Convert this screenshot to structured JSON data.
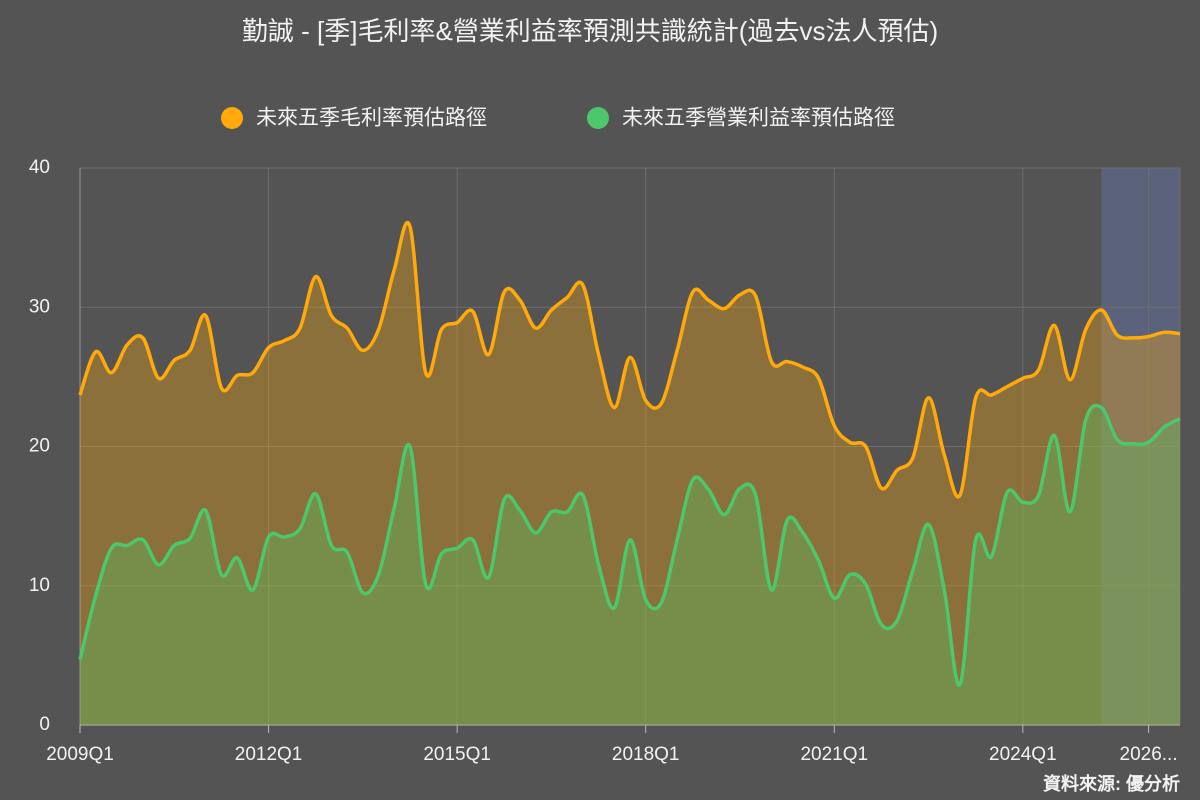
{
  "chart_data": {
    "type": "line",
    "title": "勤誠 - [季]毛利率&營業利益率預測共識統計(過去vs法人預估)",
    "source": "資料來源: 優分析",
    "categories": [
      "2009Q1",
      null,
      null,
      null,
      null,
      null,
      null,
      null,
      null,
      null,
      null,
      null,
      "2012Q1",
      null,
      null,
      null,
      null,
      null,
      null,
      null,
      null,
      null,
      null,
      null,
      "2015Q1",
      null,
      null,
      null,
      null,
      null,
      null,
      null,
      null,
      null,
      null,
      null,
      "2018Q1",
      null,
      null,
      null,
      null,
      null,
      null,
      null,
      null,
      null,
      null,
      null,
      "2021Q1",
      null,
      null,
      null,
      null,
      null,
      null,
      null,
      null,
      null,
      null,
      null,
      "2024Q1",
      null,
      null,
      null,
      null,
      null,
      null,
      null,
      "2026...",
      null,
      null
    ],
    "shaded_from": 65,
    "shade_color": "rgba(110,140,230,0.28)",
    "series": [
      {
        "name": "未來五季毛利率預估路徑",
        "color": "#ffa90a",
        "values": [
          23.7,
          26.8,
          25.3,
          27.3,
          27.8,
          24.9,
          26.2,
          26.9,
          29.4,
          24.2,
          25.1,
          25.3,
          27.1,
          27.6,
          28.5,
          32.2,
          29.4,
          28.5,
          26.9,
          28.4,
          32.7,
          35.8,
          25.3,
          28.4,
          28.9,
          29.7,
          26.6,
          31.1,
          30.5,
          28.5,
          29.8,
          30.7,
          31.6,
          26.6,
          22.8,
          26.4,
          23.3,
          23.1,
          26.9,
          31.1,
          30.5,
          29.9,
          30.9,
          30.8,
          26.1,
          26.1,
          25.7,
          24.9,
          21.5,
          20.3,
          20.0,
          17.0,
          18.3,
          19.2,
          23.5,
          19.4,
          16.5,
          23.5,
          23.7,
          24.3,
          24.9,
          25.5,
          28.7,
          24.8,
          28.4,
          29.8,
          28.0,
          27.8,
          27.9,
          28.2,
          28.1
        ]
      },
      {
        "name": "未來五季營業利益率預估路徑",
        "color": "#4cc76b",
        "values": [
          4.7,
          9.3,
          12.7,
          12.9,
          13.3,
          11.5,
          12.9,
          13.4,
          15.4,
          10.8,
          12.0,
          9.7,
          13.5,
          13.5,
          14.1,
          16.6,
          12.9,
          12.4,
          9.5,
          10.8,
          15.6,
          20.0,
          10.1,
          12.3,
          12.7,
          13.3,
          10.6,
          16.2,
          15.4,
          13.8,
          15.3,
          15.3,
          16.5,
          11.5,
          8.4,
          13.3,
          9.0,
          8.8,
          13.3,
          17.6,
          16.9,
          15.1,
          17.0,
          16.5,
          9.7,
          14.7,
          13.8,
          11.8,
          9.1,
          10.8,
          10.1,
          7.2,
          7.5,
          11.1,
          14.4,
          9.7,
          2.9,
          13.3,
          12.1,
          16.7,
          16.0,
          16.5,
          20.8,
          15.3,
          21.9,
          22.8,
          20.5,
          20.2,
          20.3,
          21.4,
          22.0
        ]
      }
    ],
    "ylim": [
      0,
      40
    ],
    "yticks": [
      0,
      10,
      20,
      30,
      40
    ],
    "grid": true
  }
}
